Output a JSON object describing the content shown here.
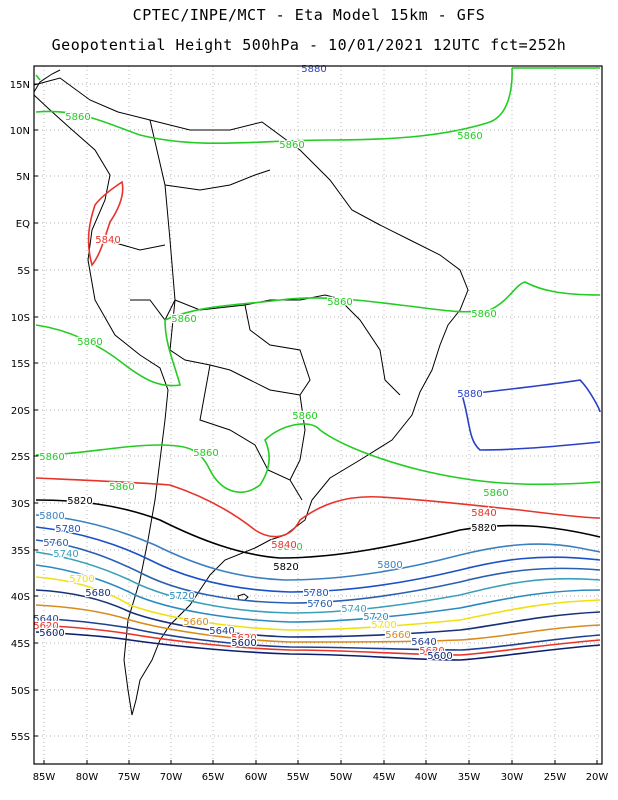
{
  "title_line1": "CPTEC/INPE/MCT  -   Eta Model 15km  -  GFS",
  "title_line2": "Geopotential Height 500hPa  -  10/01/2021 12UTC fct=252h",
  "lat_labels": [
    "15N",
    "10N",
    "5N",
    "EQ",
    "5S",
    "10S",
    "15S",
    "20S",
    "25S",
    "30S",
    "35S",
    "40S",
    "45S",
    "50S",
    "55S"
  ],
  "lon_labels": [
    "85W",
    "80W",
    "75W",
    "70W",
    "65W",
    "60W",
    "55W",
    "50W",
    "45W",
    "40W",
    "35W",
    "30W",
    "25W",
    "20W"
  ],
  "contour_colors": {
    "5600": "#0a1f6e",
    "5620": "#e8332a",
    "5640": "#1f3f8f",
    "5660": "#d98a1a",
    "5680": "#16307a",
    "5700": "#f0e010",
    "5720": "#2a8ac0",
    "5740": "#3aa0b8",
    "5760": "#2860b0",
    "5780": "#1a50c8",
    "5800": "#3a7fc0",
    "5820": "#000000",
    "5840": "#e8332a",
    "5860": "#22cc22",
    "5880": "#2a40c8",
    "coast": "#000000"
  },
  "contour_labels": [
    {
      "text": "5860",
      "color_key": "5860"
    },
    {
      "text": "5860",
      "color_key": "5860"
    },
    {
      "text": "5860",
      "color_key": "5860"
    },
    {
      "text": "5840",
      "color_key": "5840"
    },
    {
      "text": "5880",
      "color_key": "5880"
    },
    {
      "text": "5860",
      "color_key": "5860"
    },
    {
      "text": "5860",
      "color_key": "5860"
    },
    {
      "text": "5860",
      "color_key": "5860"
    },
    {
      "text": "5860",
      "color_key": "5860"
    },
    {
      "text": "5860",
      "color_key": "5860"
    },
    {
      "text": "5880",
      "color_key": "5880"
    },
    {
      "text": "5860",
      "color_key": "5860"
    },
    {
      "text": "5860",
      "color_key": "5860"
    },
    {
      "text": "5860",
      "color_key": "5860"
    },
    {
      "text": "5860",
      "color_key": "5860"
    },
    {
      "text": "5840",
      "color_key": "5840"
    },
    {
      "text": "5820",
      "color_key": "5820"
    },
    {
      "text": "5840",
      "color_key": "5840"
    },
    {
      "text": "5860",
      "color_key": "5860"
    },
    {
      "text": "5800",
      "color_key": "5800"
    },
    {
      "text": "5780",
      "color_key": "5780"
    },
    {
      "text": "5760",
      "color_key": "5760"
    },
    {
      "text": "5740",
      "color_key": "5740"
    },
    {
      "text": "5840",
      "color_key": "5840"
    },
    {
      "text": "5820",
      "color_key": "5820"
    },
    {
      "text": "5820",
      "color_key": "5820"
    },
    {
      "text": "5800",
      "color_key": "5800"
    },
    {
      "text": "5700",
      "color_key": "5700"
    },
    {
      "text": "5680",
      "color_key": "5680"
    },
    {
      "text": "5720",
      "color_key": "5720"
    },
    {
      "text": "5780",
      "color_key": "5780"
    },
    {
      "text": "5760",
      "color_key": "5760"
    },
    {
      "text": "5740",
      "color_key": "5740"
    },
    {
      "text": "5720",
      "color_key": "5720"
    },
    {
      "text": "5700",
      "color_key": "5700"
    },
    {
      "text": "5660",
      "color_key": "5660"
    },
    {
      "text": "5640",
      "color_key": "5640"
    },
    {
      "text": "5620",
      "color_key": "5620"
    },
    {
      "text": "5600",
      "color_key": "5600"
    },
    {
      "text": "5640",
      "color_key": "5640"
    },
    {
      "text": "5620",
      "color_key": "5620"
    },
    {
      "text": "5600",
      "color_key": "5600"
    },
    {
      "text": "5660",
      "color_key": "5660"
    },
    {
      "text": "5640",
      "color_key": "5640"
    },
    {
      "text": "5620",
      "color_key": "5620"
    },
    {
      "text": "5600",
      "color_key": "5600"
    }
  ]
}
